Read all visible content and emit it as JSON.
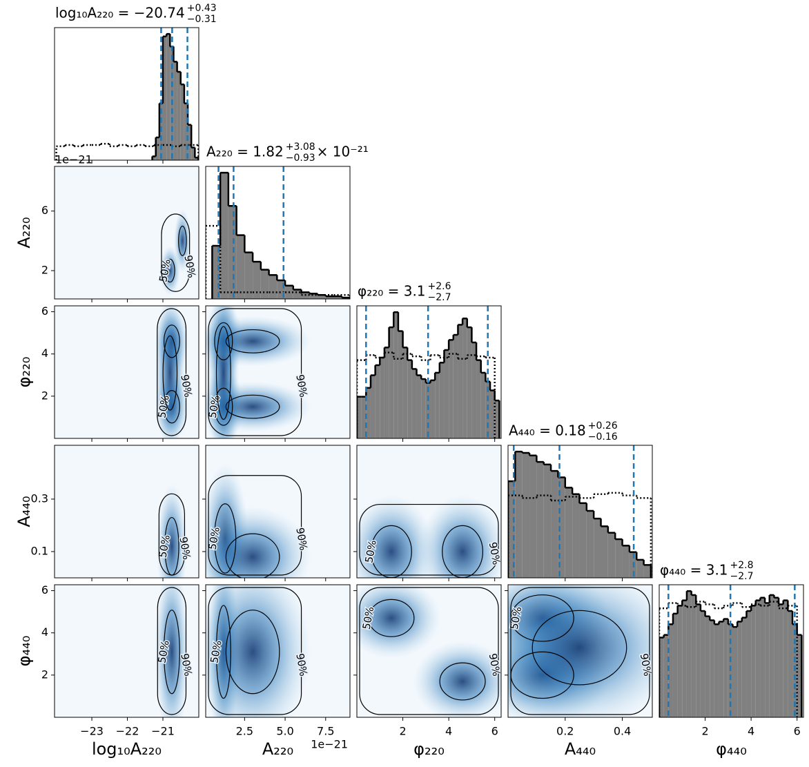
{
  "chart_data": {
    "type": "corner",
    "contour_labels": [
      "50%",
      "90%"
    ],
    "offset_text": "1e−21",
    "params": [
      {
        "label": "log₁₀A₂₂₀",
        "title": "log₁₀A₂₂₀ = −20.74",
        "title_plus": "+0.43",
        "title_minus": "−0.31",
        "lim": [
          -24.05,
          -19.99
        ],
        "xticks": [
          {
            "value": -23,
            "label": "−23"
          },
          {
            "value": -22,
            "label": "−22"
          },
          {
            "value": -21,
            "label": "−21"
          }
        ],
        "quantiles": [
          -21.05,
          -20.74,
          -20.31
        ],
        "bins": [
          -21.3,
          -21.2,
          -21.1,
          -21.0,
          -20.9,
          -20.8,
          -20.7,
          -20.6,
          -20.5,
          -20.4,
          -20.3,
          -20.2,
          -20.1,
          -20.0
        ],
        "counts": [
          3,
          18,
          45,
          98,
          100,
          90,
          78,
          70,
          60,
          45,
          28,
          10,
          2
        ],
        "prior_bins": [
          -24.0,
          -23.75,
          -23.5,
          -23.25,
          -23.0,
          -22.75,
          -22.5,
          -22.25,
          -22.0,
          -21.75,
          -21.5,
          -21.25,
          -21.0,
          -20.75,
          -20.5,
          -20.25,
          -20.0
        ],
        "prior_counts": [
          11,
          12,
          11,
          12,
          12,
          13,
          11,
          12,
          11,
          12,
          11,
          12,
          12,
          11,
          12,
          12
        ]
      },
      {
        "label": "A₂₂₀",
        "title": "A₂₂₀ = 1.82",
        "title_plus": "+3.08",
        "title_minus": "−0.93",
        "title_suffix": " × 10⁻²¹",
        "lim": [
          0.1,
          9.0
        ],
        "xticks": [
          2.5,
          {
            "value": 5,
            "label": "5.0"
          },
          7.5
        ],
        "yticks": [
          2,
          6
        ],
        "quantiles": [
          0.89,
          1.82,
          4.9
        ],
        "bins": [
          0.5,
          1.0,
          1.5,
          2.0,
          2.5,
          3.0,
          3.5,
          4.0,
          4.5,
          5.0,
          5.5,
          6.0,
          6.5,
          7.0,
          7.5,
          8.0,
          8.5,
          9.0
        ],
        "counts": [
          40,
          95,
          70,
          48,
          35,
          28,
          22,
          18,
          14,
          10,
          7,
          5,
          4,
          3,
          2,
          2,
          1
        ],
        "prior_bins": [
          0.1,
          1.0,
          2.0,
          3.0,
          4.0,
          5.0,
          6.0,
          7.0,
          8.0,
          9.0
        ],
        "prior_counts": [
          55,
          5,
          5,
          5,
          5,
          5,
          3,
          3,
          3
        ]
      },
      {
        "label": "φ₂₂₀",
        "title": "φ₂₂₀ = 3.1",
        "title_plus": "+2.6",
        "title_minus": "−2.7",
        "lim": [
          0,
          6.28
        ],
        "xticks": [
          2,
          4,
          6
        ],
        "yticks": [
          2,
          4,
          6
        ],
        "quantiles": [
          0.4,
          3.1,
          5.7
        ],
        "bins": [
          0,
          0.2,
          0.4,
          0.6,
          0.8,
          1.0,
          1.2,
          1.4,
          1.6,
          1.8,
          2.0,
          2.2,
          2.4,
          2.6,
          2.8,
          3.0,
          3.2,
          3.4,
          3.6,
          3.8,
          4.0,
          4.2,
          4.4,
          4.6,
          4.8,
          5.0,
          5.2,
          5.4,
          5.6,
          5.8,
          6.0,
          6.2
        ],
        "counts": [
          33,
          33,
          40,
          50,
          58,
          64,
          72,
          88,
          100,
          85,
          72,
          62,
          55,
          50,
          47,
          44,
          46,
          52,
          60,
          70,
          78,
          82,
          90,
          95,
          88,
          76,
          62,
          52,
          45,
          38,
          30
        ],
        "prior_bins": [
          0,
          0.4,
          0.8,
          1.2,
          1.6,
          2.0,
          2.4,
          2.8,
          3.2,
          3.6,
          4.0,
          4.4,
          4.8,
          5.2,
          5.6,
          6.0
        ],
        "prior_counts": [
          62,
          66,
          64,
          68,
          63,
          67,
          65,
          62,
          66,
          64,
          67,
          63,
          66,
          65,
          64
        ]
      },
      {
        "label": "A₄₄₀",
        "title": "A₄₄₀ = 0.18",
        "title_plus": "+0.26",
        "title_minus": "−0.16",
        "lim": [
          0,
          0.505
        ],
        "xticks": [
          0.2,
          0.4
        ],
        "yticks": [
          0.1,
          0.3
        ],
        "quantiles": [
          0.02,
          0.18,
          0.44
        ],
        "bins": [
          0,
          0.025,
          0.05,
          0.075,
          0.1,
          0.125,
          0.15,
          0.175,
          0.2,
          0.225,
          0.25,
          0.275,
          0.3,
          0.325,
          0.35,
          0.375,
          0.4,
          0.425,
          0.45,
          0.475,
          0.5
        ],
        "counts": [
          75,
          98,
          97,
          95,
          90,
          88,
          83,
          78,
          70,
          65,
          58,
          52,
          46,
          40,
          35,
          30,
          25,
          20,
          14,
          10
        ],
        "prior_bins": [
          0,
          0.05,
          0.1,
          0.15,
          0.2,
          0.25,
          0.3,
          0.35,
          0.4,
          0.45,
          0.5
        ],
        "prior_counts": [
          64,
          62,
          64,
          60,
          63,
          62,
          65,
          66,
          64,
          62
        ]
      },
      {
        "label": "φ₄₄₀",
        "title": "φ₄₄₀ = 3.1",
        "title_plus": "+2.8",
        "title_minus": "−2.7",
        "lim": [
          0,
          6.28
        ],
        "xticks": [
          2,
          4,
          6
        ],
        "yticks": [
          2,
          4,
          6
        ],
        "quantiles": [
          0.4,
          3.1,
          5.9
        ],
        "bins": [
          0,
          0.2,
          0.4,
          0.6,
          0.8,
          1.0,
          1.2,
          1.4,
          1.6,
          1.8,
          2.0,
          2.2,
          2.4,
          2.6,
          2.8,
          3.0,
          3.2,
          3.4,
          3.6,
          3.8,
          4.0,
          4.2,
          4.4,
          4.6,
          4.8,
          5.0,
          5.2,
          5.4,
          5.6,
          5.8,
          6.0,
          6.2
        ],
        "counts": [
          60,
          62,
          70,
          78,
          84,
          88,
          95,
          92,
          85,
          80,
          76,
          73,
          70,
          72,
          74,
          70,
          68,
          72,
          75,
          80,
          84,
          88,
          90,
          86,
          92,
          90,
          85,
          88,
          80,
          70,
          62
        ],
        "prior_bins": [
          0,
          0.4,
          0.8,
          1.2,
          1.6,
          2.0,
          2.4,
          2.8,
          3.2,
          3.6,
          4.0,
          4.4,
          4.8,
          5.2,
          5.6,
          6.0
        ],
        "prior_counts": [
          82,
          86,
          84,
          83,
          87,
          85,
          82,
          84,
          86,
          83,
          85,
          84,
          87,
          82,
          84
        ]
      }
    ],
    "pairs": [
      [
        [
          [
            -20.8,
            2.0,
            0.12,
            0.7
          ],
          [
            -20.45,
            4.0,
            0.1,
            0.9
          ]
        ]
      ],
      [
        [
          [
            -20.75,
            1.5,
            0.2,
            0.7
          ],
          [
            -20.75,
            4.6,
            0.2,
            0.7
          ],
          [
            -20.8,
            3.1,
            0.18,
            1.6
          ]
        ],
        [
          [
            1.2,
            1.5,
            0.5,
            0.8
          ],
          [
            1.2,
            4.6,
            0.5,
            0.8
          ],
          [
            1.2,
            3.1,
            0.4,
            2.0
          ],
          [
            3.0,
            1.5,
            1.5,
            0.5
          ],
          [
            3.0,
            4.6,
            1.5,
            0.5
          ]
        ]
      ],
      [
        [
          [
            -20.75,
            0.12,
            0.18,
            0.1
          ]
        ],
        [
          [
            1.3,
            0.15,
            0.6,
            0.12
          ],
          [
            3.0,
            0.08,
            1.5,
            0.08
          ]
        ],
        [
          [
            1.5,
            0.1,
            0.8,
            0.09
          ],
          [
            4.6,
            0.1,
            0.8,
            0.09
          ]
        ]
      ],
      [
        [
          [
            -20.75,
            3.1,
            0.2,
            1.8
          ]
        ],
        [
          [
            1.2,
            3.1,
            0.4,
            2.0
          ],
          [
            3.0,
            3.1,
            1.5,
            1.8
          ]
        ],
        [
          [
            1.5,
            4.7,
            0.9,
            0.8
          ],
          [
            4.6,
            1.7,
            0.9,
            0.8
          ]
        ],
        [
          [
            0.12,
            4.7,
            0.1,
            1.0
          ],
          [
            0.12,
            2.0,
            0.1,
            1.0
          ],
          [
            0.25,
            3.3,
            0.15,
            1.6
          ]
        ]
      ]
    ]
  }
}
